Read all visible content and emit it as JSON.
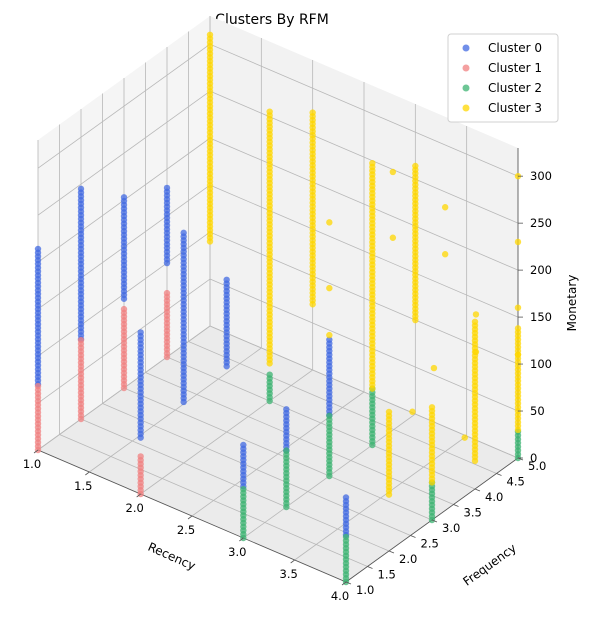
{
  "chart_data": {
    "type": "scatter",
    "projection": "3d",
    "title": "Clusters By RFM",
    "xlabel": "Recency",
    "ylabel": "Frequency",
    "zlabel": "Monetary",
    "xlim": [
      1.0,
      4.0
    ],
    "ylim": [
      1.0,
      5.0
    ],
    "zlim": [
      0,
      330
    ],
    "x_ticks": [
      1.0,
      1.5,
      2.0,
      2.5,
      3.0,
      3.5,
      4.0
    ],
    "x_tick_labels": [
      "1.0",
      "1.5",
      "2.0",
      "2.5",
      "3.0",
      "3.5",
      "4.0"
    ],
    "y_ticks": [
      1.0,
      1.5,
      2.0,
      2.5,
      3.0,
      3.5,
      4.0,
      4.5,
      5.0
    ],
    "y_tick_labels": [
      "1.0",
      "1.5",
      "2.0",
      "2.5",
      "3.0",
      "3.5",
      "4.0",
      "4.5",
      "5.0"
    ],
    "z_ticks": [
      0,
      50,
      100,
      150,
      200,
      250,
      300
    ],
    "z_tick_labels": [
      "0",
      "50",
      "100",
      "150",
      "200",
      "250",
      "300"
    ],
    "grid": true,
    "legend_position": "top-right",
    "series": [
      {
        "name": "Cluster 0",
        "color": "#4169e1",
        "segments": [
          {
            "x": 1,
            "y": 1,
            "z": [
              70,
              215
            ]
          },
          {
            "x": 1,
            "y": 2,
            "z": [
              85,
              245
            ]
          },
          {
            "x": 1,
            "y": 3,
            "z": [
              95,
              205
            ]
          },
          {
            "x": 1,
            "y": 4,
            "z": [
              100,
              180
            ]
          },
          {
            "x": 2,
            "y": 1,
            "z": [
              60,
              175
            ]
          },
          {
            "x": 2,
            "y": 2,
            "z": [
              65,
              245
            ]
          },
          {
            "x": 2,
            "y": 3,
            "z": [
              70,
              165
            ]
          },
          {
            "x": 3,
            "y": 1,
            "z": [
              55,
              100
            ]
          },
          {
            "x": 3,
            "y": 2,
            "z": [
              60,
              105
            ]
          },
          {
            "x": 3,
            "y": 3,
            "z": [
              65,
              145
            ]
          },
          {
            "x": 4,
            "y": 1,
            "z": [
              50,
              90
            ]
          }
        ]
      },
      {
        "name": "Cluster 1",
        "color": "#f08080",
        "segments": [
          {
            "x": 1,
            "y": 1,
            "z": [
              0,
              70
            ]
          },
          {
            "x": 1,
            "y": 2,
            "z": [
              0,
              85
            ]
          },
          {
            "x": 1,
            "y": 3,
            "z": [
              0,
              85
            ]
          },
          {
            "x": 1,
            "y": 4,
            "z": [
              0,
              70
            ]
          },
          {
            "x": 2,
            "y": 1,
            "z": [
              0,
              40
            ]
          }
        ]
      },
      {
        "name": "Cluster 2",
        "color": "#3cb371",
        "segments": [
          {
            "x": 3,
            "y": 1,
            "z": [
              0,
              55
            ]
          },
          {
            "x": 3,
            "y": 2,
            "z": [
              0,
              60
            ]
          },
          {
            "x": 3,
            "y": 3,
            "z": [
              0,
              65
            ]
          },
          {
            "x": 3,
            "y": 4,
            "z": [
              0,
              60
            ]
          },
          {
            "x": 4,
            "y": 1,
            "z": [
              0,
              50
            ]
          },
          {
            "x": 4,
            "y": 3,
            "z": [
              0,
              40
            ]
          },
          {
            "x": 4,
            "y": 5,
            "z": [
              0,
              30
            ]
          },
          {
            "x": 2,
            "y": 4,
            "z": [
              0,
              30
            ]
          }
        ]
      },
      {
        "name": "Cluster 3",
        "color": "#ffd700",
        "segments": [
          {
            "x": 1,
            "y": 5,
            "z": [
              90,
              310
            ]
          },
          {
            "x": 2,
            "y": 4,
            "z": [
              40,
              310
            ]
          },
          {
            "x": 2,
            "y": 5,
            "z": [
              70,
              275
            ]
          },
          {
            "x": 3,
            "y": 4,
            "z": [
              60,
              300
            ]
          },
          {
            "x": 3,
            "y": 5,
            "z": [
              100,
              265
            ]
          },
          {
            "x": 4,
            "y": 2,
            "z": [
              60,
              150
            ]
          },
          {
            "x": 4,
            "y": 3,
            "z": [
              40,
              120
            ]
          },
          {
            "x": 4,
            "y": 4,
            "z": [
              30,
              180
            ]
          },
          {
            "x": 4,
            "y": 5,
            "z": [
              30,
              140
            ]
          }
        ],
        "scattered": [
          {
            "x": 3.0,
            "y": 3.0,
            "z": 150
          },
          {
            "x": 3.0,
            "y": 3.0,
            "z": 200
          },
          {
            "x": 3.0,
            "y": 3.0,
            "z": 270
          },
          {
            "x": 3.2,
            "y": 4.0,
            "z": 230
          },
          {
            "x": 3.2,
            "y": 4.0,
            "z": 300
          },
          {
            "x": 3.5,
            "y": 4.5,
            "z": 210
          },
          {
            "x": 3.5,
            "y": 4.5,
            "z": 260
          },
          {
            "x": 3.6,
            "y": 4.0,
            "z": 110
          },
          {
            "x": 3.8,
            "y": 4.5,
            "z": 120
          },
          {
            "x": 3.8,
            "y": 4.5,
            "z": 160
          },
          {
            "x": 4.0,
            "y": 5.0,
            "z": 230
          },
          {
            "x": 4.0,
            "y": 5.0,
            "z": 300
          },
          {
            "x": 4.0,
            "y": 5.0,
            "z": 160
          },
          {
            "x": 4.0,
            "y": 5.0,
            "z": 110
          },
          {
            "x": 3.6,
            "y": 3.5,
            "z": 80
          },
          {
            "x": 3.9,
            "y": 4.0,
            "z": 50
          }
        ]
      }
    ]
  }
}
